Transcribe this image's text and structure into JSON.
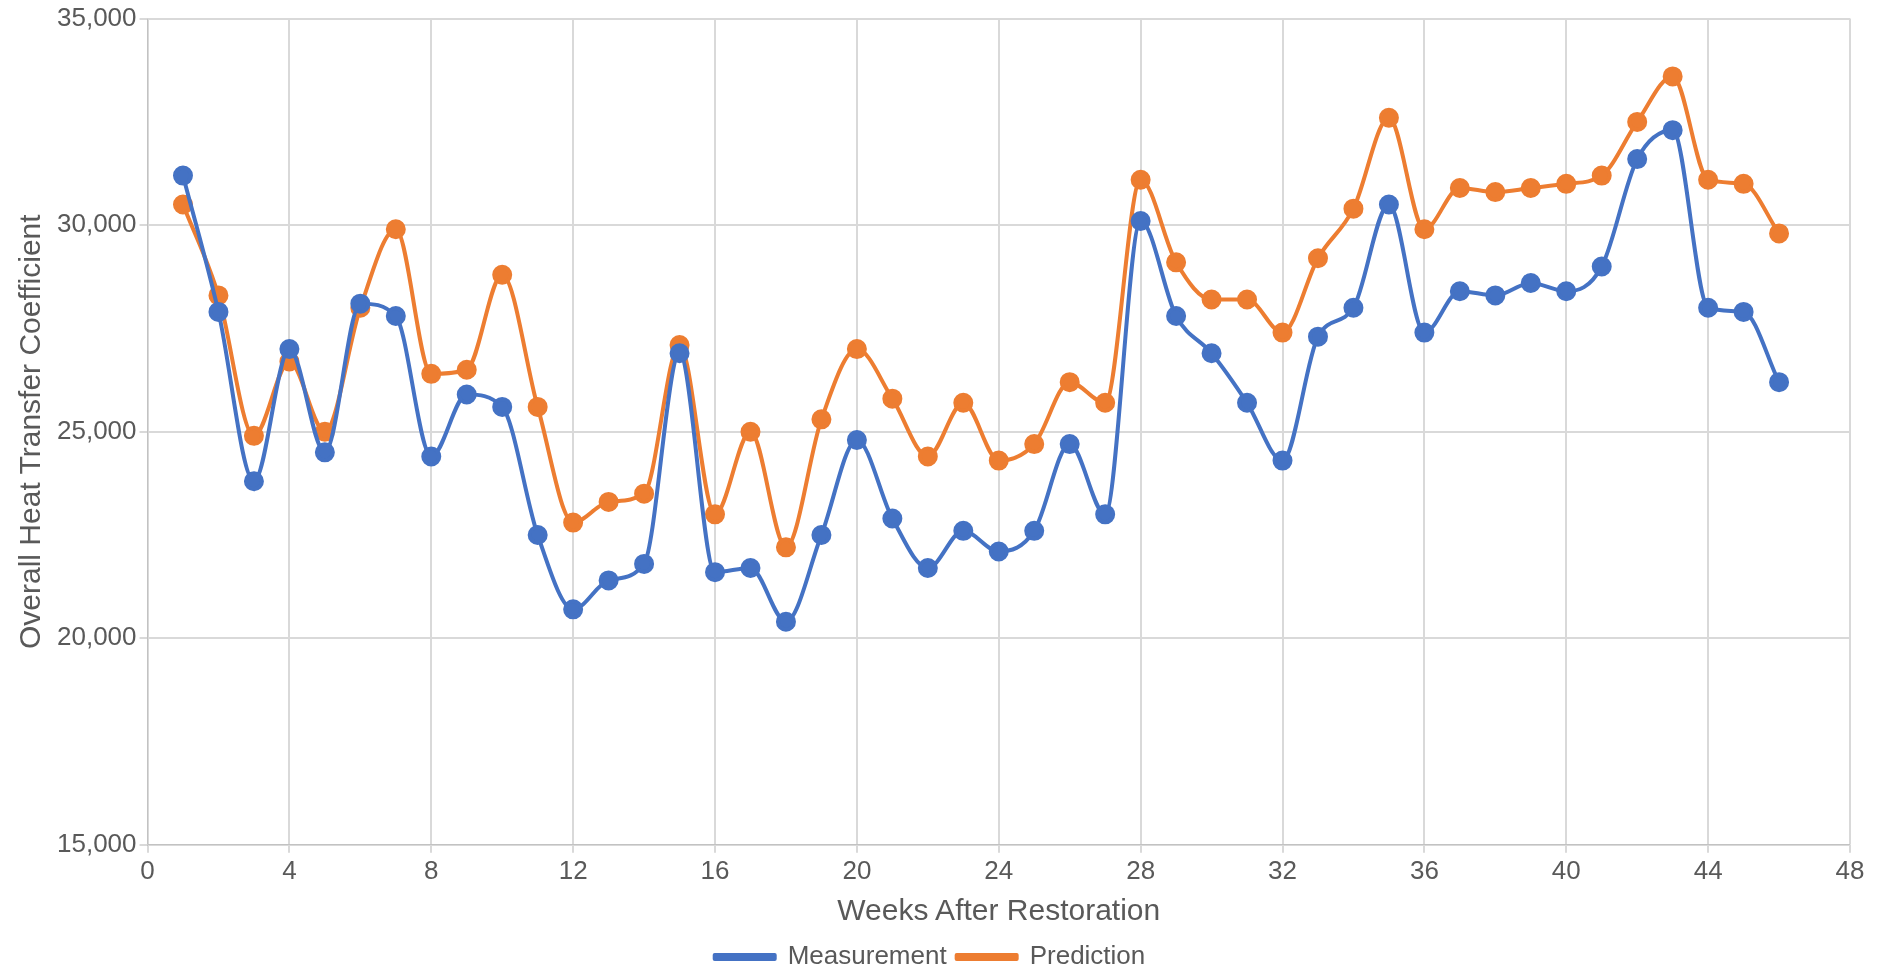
{
  "chart_data": {
    "type": "line",
    "xlabel": "Weeks After Restoration",
    "ylabel": "Overall Heat Transfer Coefficient",
    "x": [
      1,
      2,
      3,
      4,
      5,
      6,
      7,
      8,
      9,
      10,
      11,
      12,
      13,
      14,
      15,
      16,
      17,
      18,
      19,
      20,
      21,
      22,
      23,
      24,
      25,
      26,
      27,
      28,
      29,
      30,
      31,
      32,
      33,
      34,
      35,
      36,
      37,
      38,
      39,
      40,
      41,
      42,
      43,
      44,
      45,
      46
    ],
    "series": [
      {
        "name": "Measurement",
        "color": "#4472c4",
        "values": [
          31200,
          27900,
          23800,
          27000,
          24500,
          28100,
          27800,
          24400,
          25900,
          25600,
          22500,
          20700,
          21400,
          21800,
          26900,
          21600,
          21700,
          20400,
          22500,
          24800,
          22900,
          21700,
          22600,
          22100,
          22600,
          24700,
          23000,
          30100,
          27800,
          26900,
          25700,
          24300,
          27300,
          28000,
          30500,
          27400,
          28400,
          28300,
          28600,
          28400,
          29000,
          31600,
          32300,
          28000,
          27900,
          26200
        ]
      },
      {
        "name": "Prediction",
        "color": "#ed7d31",
        "values": [
          30500,
          28300,
          24900,
          26700,
          25000,
          28000,
          29900,
          26400,
          26500,
          28800,
          25600,
          22800,
          23300,
          23500,
          27100,
          23000,
          25000,
          22200,
          25300,
          27000,
          25800,
          24400,
          25700,
          24300,
          24700,
          26200,
          25700,
          31100,
          29100,
          28200,
          28200,
          27400,
          29200,
          30400,
          32600,
          29900,
          30900,
          30800,
          30900,
          31000,
          31200,
          32500,
          33600,
          31100,
          31000,
          29800
        ]
      }
    ],
    "xlim": [
      0,
      48
    ],
    "xticks": [
      0,
      4,
      8,
      12,
      16,
      20,
      24,
      28,
      32,
      36,
      40,
      44,
      48
    ],
    "ylim": [
      15000,
      35000
    ],
    "yticks": [
      {
        "value": 15000,
        "label": "15,000"
      },
      {
        "value": 20000,
        "label": "20,000"
      },
      {
        "value": 25000,
        "label": "25,000"
      },
      {
        "value": 30000,
        "label": "30,000"
      },
      {
        "value": 35000,
        "label": "35,000"
      }
    ],
    "grid": true,
    "legend": "bottom",
    "marker": "circle",
    "line_style": "solid"
  }
}
